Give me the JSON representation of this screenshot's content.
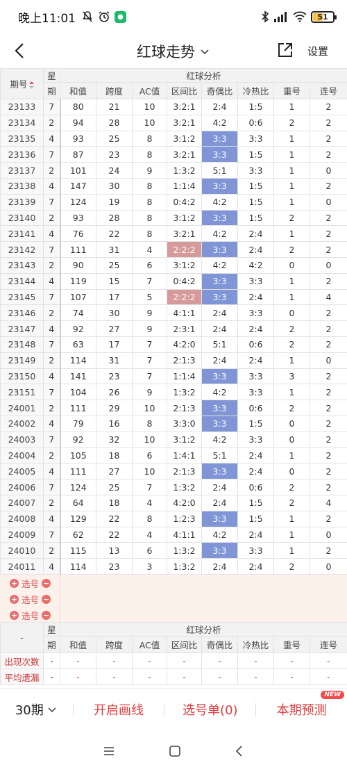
{
  "status_bar": {
    "time": "晚上11:01",
    "battery": "51",
    "battery_level": 0.51
  },
  "header": {
    "title": "红球走势",
    "settings_label": "设置"
  },
  "table": {
    "col_period": "期号",
    "col_week_top": "星",
    "col_week_bottom": "期",
    "group_title": "红球分析",
    "columns": [
      "和值",
      "跨度",
      "AC值",
      "区间比",
      "奇偶比",
      "冷热比",
      "重号",
      "连号"
    ],
    "rows": [
      {
        "period": "23133",
        "week": "7",
        "cells": [
          "80",
          "21",
          "10",
          "3:2:1",
          "2:4",
          "1:5",
          "1",
          "2"
        ],
        "hl": []
      },
      {
        "period": "23134",
        "week": "2",
        "cells": [
          "94",
          "28",
          "10",
          "3:2:1",
          "4:2",
          "0:6",
          "2",
          "2"
        ],
        "hl": []
      },
      {
        "period": "23135",
        "week": "4",
        "cells": [
          "93",
          "25",
          "8",
          "3:1:2",
          "3:3",
          "3:3",
          "1",
          "2"
        ],
        "hl": [
          4
        ]
      },
      {
        "period": "23136",
        "week": "7",
        "cells": [
          "87",
          "23",
          "8",
          "3:2:1",
          "3:3",
          "1:5",
          "1",
          "2"
        ],
        "hl": [
          4
        ]
      },
      {
        "period": "23137",
        "week": "2",
        "cells": [
          "101",
          "24",
          "9",
          "1:3:2",
          "5:1",
          "3:3",
          "1",
          "0"
        ],
        "hl": []
      },
      {
        "period": "23138",
        "week": "4",
        "cells": [
          "147",
          "30",
          "8",
          "1:1:4",
          "3:3",
          "1:5",
          "1",
          "2"
        ],
        "hl": [
          4
        ]
      },
      {
        "period": "23139",
        "week": "7",
        "cells": [
          "124",
          "19",
          "8",
          "0:4:2",
          "4:2",
          "1:5",
          "1",
          "0"
        ],
        "hl": []
      },
      {
        "period": "23140",
        "week": "2",
        "cells": [
          "93",
          "28",
          "8",
          "3:1:2",
          "3:3",
          "1:5",
          "2",
          "2"
        ],
        "hl": [
          4
        ]
      },
      {
        "period": "23141",
        "week": "4",
        "cells": [
          "76",
          "22",
          "8",
          "3:2:1",
          "4:2",
          "2:4",
          "1",
          "2"
        ],
        "hl": []
      },
      {
        "period": "23142",
        "week": "7",
        "cells": [
          "111",
          "31",
          "4",
          "2:2:2",
          "3:3",
          "2:4",
          "2",
          "2"
        ],
        "hl": [
          3,
          4
        ]
      },
      {
        "period": "23143",
        "week": "2",
        "cells": [
          "90",
          "25",
          "6",
          "3:1:2",
          "4:2",
          "4:2",
          "0",
          "0"
        ],
        "hl": []
      },
      {
        "period": "23144",
        "week": "4",
        "cells": [
          "119",
          "15",
          "7",
          "0:4:2",
          "3:3",
          "3:3",
          "1",
          "2"
        ],
        "hl": [
          4
        ]
      },
      {
        "period": "23145",
        "week": "7",
        "cells": [
          "107",
          "17",
          "5",
          "2:2:2",
          "3:3",
          "2:4",
          "1",
          "4"
        ],
        "hl": [
          3,
          4
        ]
      },
      {
        "period": "23146",
        "week": "2",
        "cells": [
          "74",
          "30",
          "9",
          "4:1:1",
          "2:4",
          "3:3",
          "0",
          "2"
        ],
        "hl": []
      },
      {
        "period": "23147",
        "week": "4",
        "cells": [
          "92",
          "27",
          "9",
          "2:3:1",
          "2:4",
          "2:4",
          "2",
          "2"
        ],
        "hl": []
      },
      {
        "period": "23148",
        "week": "7",
        "cells": [
          "63",
          "17",
          "7",
          "4:2:0",
          "5:1",
          "0:6",
          "2",
          "2"
        ],
        "hl": []
      },
      {
        "period": "23149",
        "week": "2",
        "cells": [
          "114",
          "31",
          "7",
          "2:1:3",
          "2:4",
          "2:4",
          "1",
          "0"
        ],
        "hl": []
      },
      {
        "period": "23150",
        "week": "4",
        "cells": [
          "141",
          "23",
          "7",
          "1:1:4",
          "3:3",
          "3:3",
          "3",
          "2"
        ],
        "hl": [
          4
        ]
      },
      {
        "period": "23151",
        "week": "7",
        "cells": [
          "104",
          "26",
          "9",
          "1:3:2",
          "4:2",
          "3:3",
          "1",
          "2"
        ],
        "hl": []
      },
      {
        "period": "24001",
        "week": "2",
        "cells": [
          "111",
          "29",
          "10",
          "2:1:3",
          "3:3",
          "0:6",
          "2",
          "2"
        ],
        "hl": [
          4
        ]
      },
      {
        "period": "24002",
        "week": "4",
        "cells": [
          "79",
          "16",
          "8",
          "3:3:0",
          "3:3",
          "1:5",
          "0",
          "2"
        ],
        "hl": [
          4
        ]
      },
      {
        "period": "24003",
        "week": "7",
        "cells": [
          "92",
          "32",
          "10",
          "3:1:2",
          "4:2",
          "3:3",
          "0",
          "2"
        ],
        "hl": []
      },
      {
        "period": "24004",
        "week": "2",
        "cells": [
          "105",
          "18",
          "6",
          "1:4:1",
          "5:1",
          "2:4",
          "1",
          "2"
        ],
        "hl": []
      },
      {
        "period": "24005",
        "week": "4",
        "cells": [
          "111",
          "27",
          "10",
          "2:1:3",
          "3:3",
          "2:4",
          "0",
          "2"
        ],
        "hl": [
          4
        ]
      },
      {
        "period": "24006",
        "week": "7",
        "cells": [
          "124",
          "25",
          "7",
          "1:3:2",
          "2:4",
          "0:6",
          "2",
          "2"
        ],
        "hl": []
      },
      {
        "period": "24007",
        "week": "2",
        "cells": [
          "64",
          "18",
          "4",
          "4:2:0",
          "2:4",
          "1:5",
          "2",
          "4"
        ],
        "hl": []
      },
      {
        "period": "24008",
        "week": "4",
        "cells": [
          "129",
          "22",
          "8",
          "1:2:3",
          "3:3",
          "1:5",
          "1",
          "2"
        ],
        "hl": [
          4
        ]
      },
      {
        "period": "24009",
        "week": "7",
        "cells": [
          "62",
          "22",
          "4",
          "4:1:1",
          "4:2",
          "2:4",
          "1",
          "0"
        ],
        "hl": []
      },
      {
        "period": "24010",
        "week": "2",
        "cells": [
          "115",
          "13",
          "6",
          "1:3:2",
          "3:3",
          "3:3",
          "1",
          "2"
        ],
        "hl": [
          4
        ]
      },
      {
        "period": "24011",
        "week": "4",
        "cells": [
          "114",
          "23",
          "3",
          "1:3:2",
          "2:4",
          "2:4",
          "2",
          "0"
        ],
        "hl": []
      }
    ]
  },
  "picker": {
    "label": "选号",
    "rows": 3
  },
  "stats": {
    "corner": "-",
    "week_top": "星",
    "week_bottom": "期",
    "group_title": "红球分析",
    "columns": [
      "和值",
      "跨度",
      "AC值",
      "区间比",
      "奇偶比",
      "冷热比",
      "重号",
      "连号"
    ],
    "rows": [
      {
        "label": "出现次数",
        "week": "-",
        "values": [
          "-",
          "-",
          "-",
          "-",
          "-",
          "-",
          "-",
          "-"
        ]
      },
      {
        "label": "平均遗漏",
        "week": "-",
        "values": [
          "-",
          "-",
          "-",
          "-",
          "-",
          "-",
          "-",
          "-"
        ]
      }
    ]
  },
  "bottom_bar": {
    "period_select": "30期",
    "draw_lines": "开启画线",
    "pick_list": "选号单(0)",
    "prediction": "本期预测",
    "new_badge": "NEW"
  },
  "colors": {
    "accent_red": "#e03c3c",
    "highlight_blue": "#7f95d6",
    "highlight_red": "#d79a9a"
  }
}
